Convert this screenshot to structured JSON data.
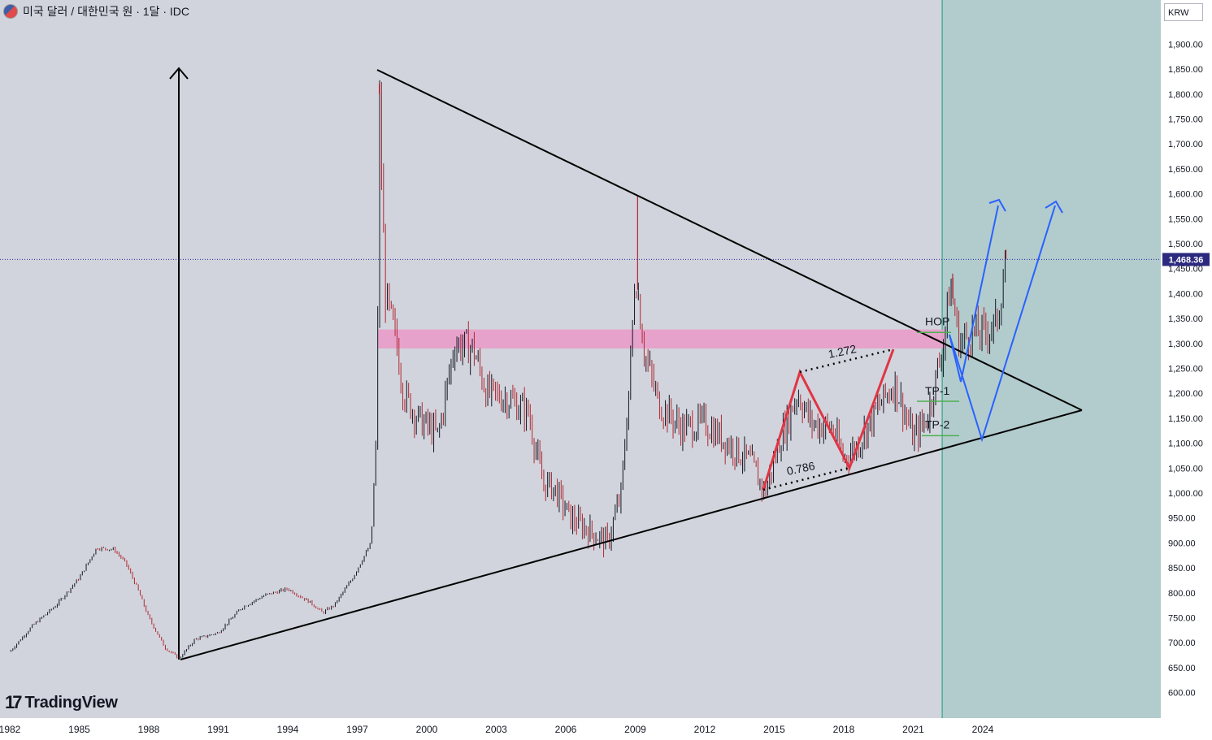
{
  "header": {
    "symbol_title": "미국 달러 / 대한민국 원 · 1달 · IDC"
  },
  "price_scale": {
    "currency": "KRW",
    "last_price": "1,468.36"
  },
  "branding": {
    "logo_text": "TradingView"
  },
  "chart_data": {
    "type": "candlestick",
    "title": "미국 달러 / 대한민국 원 · 1달 · IDC",
    "x_ticks": [
      "1982",
      "1985",
      "1988",
      "1991",
      "1994",
      "1997",
      "2000",
      "2003",
      "2006",
      "2009",
      "2012",
      "2015",
      "2018",
      "2021",
      "2024"
    ],
    "y_ticks": [
      600,
      650,
      700,
      750,
      800,
      850,
      900,
      950,
      1000,
      1050,
      1100,
      1150,
      1200,
      1250,
      1300,
      1350,
      1400,
      1450,
      1500,
      1550,
      1600,
      1650,
      1700,
      1750,
      1800,
      1850,
      1900
    ],
    "xlim": [
      1982.0,
      2032.0
    ],
    "ylim": [
      600,
      1900
    ],
    "last_price": 1468.36,
    "price_anchors": [
      [
        1982.0,
        682
      ],
      [
        1983.0,
        735
      ],
      [
        1984.0,
        775
      ],
      [
        1985.0,
        830
      ],
      [
        1985.75,
        890
      ],
      [
        1986.5,
        887
      ],
      [
        1987.0,
        860
      ],
      [
        1987.5,
        810
      ],
      [
        1988.0,
        750
      ],
      [
        1988.7,
        690
      ],
      [
        1989.3,
        668
      ],
      [
        1990.0,
        707
      ],
      [
        1991.0,
        720
      ],
      [
        1992.0,
        770
      ],
      [
        1993.0,
        795
      ],
      [
        1994.0,
        808
      ],
      [
        1995.0,
        780
      ],
      [
        1995.5,
        760
      ],
      [
        1996.0,
        775
      ],
      [
        1996.8,
        830
      ],
      [
        1997.6,
        900
      ],
      [
        1997.85,
        1150
      ],
      [
        1997.95,
        1800
      ],
      [
        1998.2,
        1400
      ],
      [
        1998.7,
        1300
      ],
      [
        1999.0,
        1200
      ],
      [
        1999.6,
        1150
      ],
      [
        2000.5,
        1115
      ],
      [
        2001.2,
        1300
      ],
      [
        2002.0,
        1290
      ],
      [
        2002.6,
        1200
      ],
      [
        2003.5,
        1190
      ],
      [
        2004.4,
        1160
      ],
      [
        2005.0,
        1020
      ],
      [
        2005.5,
        1010
      ],
      [
        2006.2,
        950
      ],
      [
        2007.0,
        925
      ],
      [
        2007.8,
        900
      ],
      [
        2008.4,
        1000
      ],
      [
        2008.8,
        1260
      ],
      [
        2009.0,
        1450
      ],
      [
        2009.4,
        1280
      ],
      [
        2010.0,
        1180
      ],
      [
        2011.0,
        1130
      ],
      [
        2012.0,
        1140
      ],
      [
        2013.0,
        1100
      ],
      [
        2014.0,
        1060
      ],
      [
        2014.6,
        1000
      ],
      [
        2015.2,
        1100
      ],
      [
        2016.0,
        1200
      ],
      [
        2016.6,
        1140
      ],
      [
        2017.5,
        1130
      ],
      [
        2018.0,
        1070
      ],
      [
        2018.5,
        1090
      ],
      [
        2019.6,
        1180
      ],
      [
        2020.2,
        1220
      ],
      [
        2021.0,
        1110
      ],
      [
        2021.6,
        1150
      ],
      [
        2022.3,
        1300
      ],
      [
        2022.6,
        1420
      ],
      [
        2023.0,
        1300
      ],
      [
        2023.5,
        1320
      ],
      [
        2024.0,
        1320
      ],
      [
        2024.6,
        1340
      ],
      [
        2025.0,
        1468
      ]
    ],
    "shaded_region": {
      "x_start": 2022.25,
      "x_end": 2032.0
    },
    "resistance_zone": {
      "y_low": 1290,
      "y_high": 1328
    },
    "annotations": [
      "HOP",
      "TP-1",
      "TP-2",
      "1.272",
      "0.786"
    ],
    "levels": {
      "HOP": 1322,
      "TP-1": 1184,
      "TP-2": 1115
    }
  }
}
